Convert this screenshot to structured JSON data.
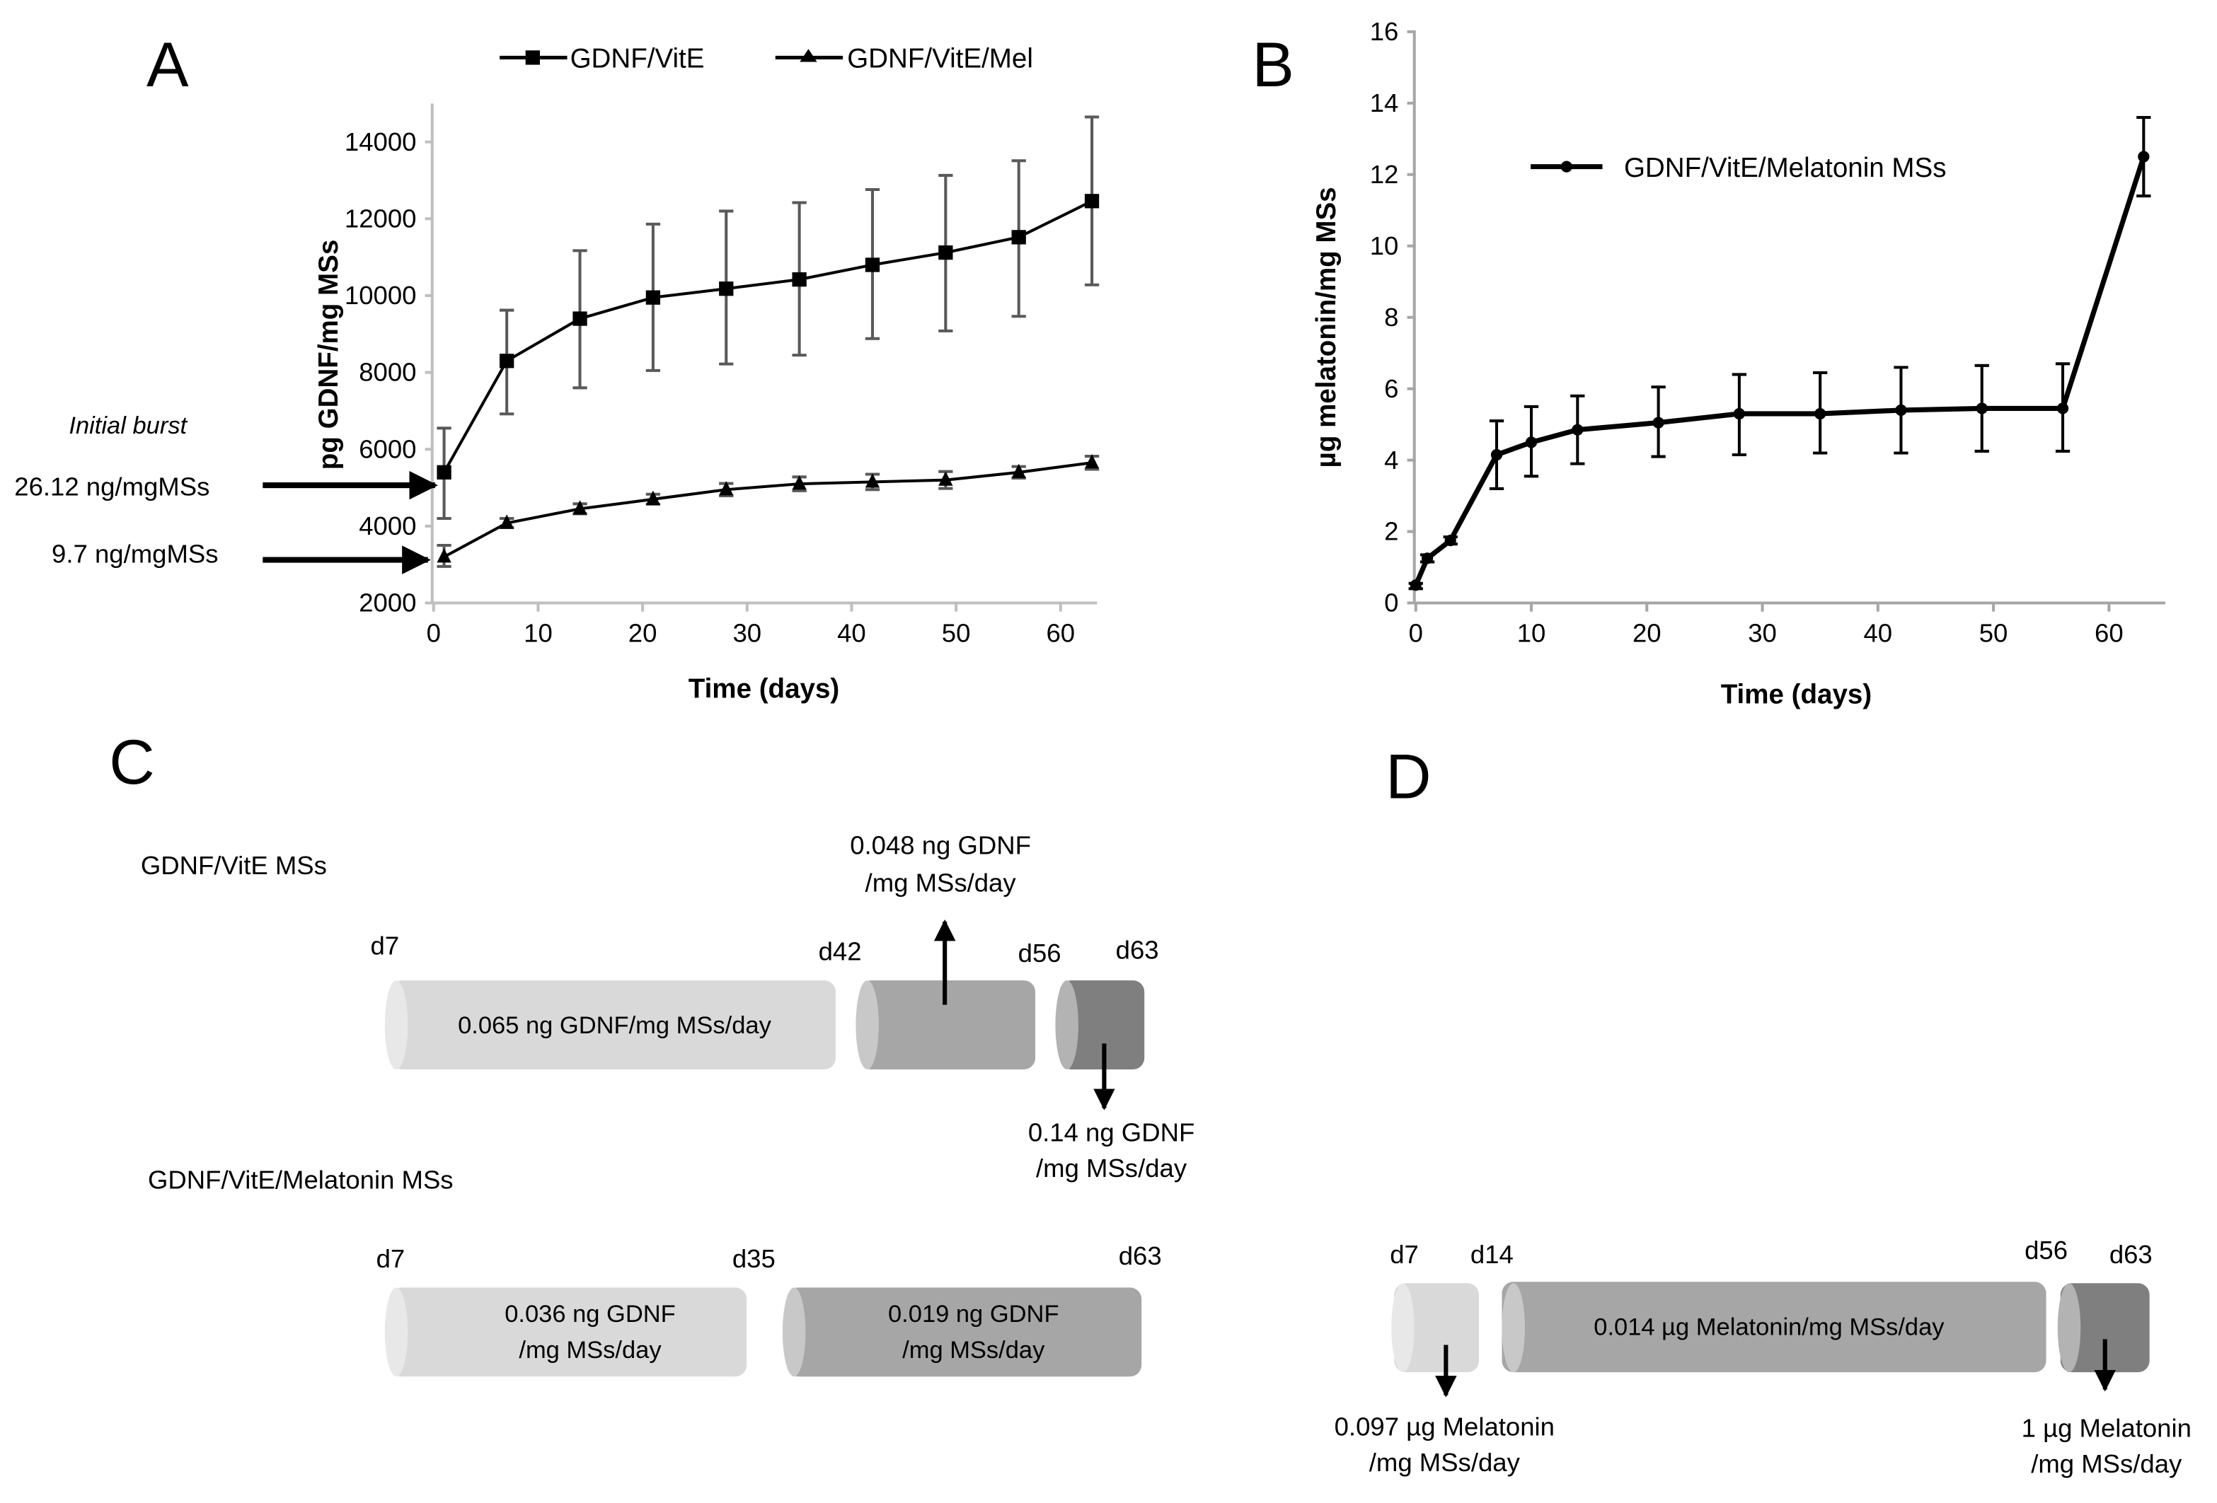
{
  "panels": {
    "a": "A",
    "b": "B",
    "c": "C",
    "d": "D"
  },
  "chart_data": [
    {
      "type": "line",
      "panel": "A",
      "xlabel": "Time (days)",
      "ylabel": "pg GDNF/mg MSs",
      "xlim": [
        0,
        65
      ],
      "ylim": [
        2000,
        15000
      ],
      "xticks": [
        0,
        10,
        20,
        30,
        40,
        50,
        60
      ],
      "yticks": [
        2000,
        4000,
        6000,
        8000,
        10000,
        12000,
        14000
      ],
      "legend_position": "top",
      "grid": false,
      "series": [
        {
          "name": "GDNF/VitE",
          "marker": "square",
          "x": [
            1,
            7,
            14,
            21,
            28,
            35,
            42,
            49,
            56,
            63
          ],
          "values": [
            5400,
            8300,
            9400,
            9950,
            10180,
            10420,
            10800,
            11120,
            11520,
            12460
          ],
          "err_upper": [
            6550,
            9620,
            11170,
            11860,
            12200,
            12420,
            12760,
            13130,
            13510,
            14650
          ],
          "err_lower": [
            4200,
            6920,
            7600,
            8050,
            8220,
            8450,
            8880,
            9080,
            9460,
            10280
          ]
        },
        {
          "name": "GDNF/VitE/Mel",
          "marker": "triangle",
          "x": [
            1,
            7,
            14,
            21,
            28,
            35,
            42,
            49,
            56,
            63
          ],
          "values": [
            3200,
            4080,
            4450,
            4700,
            4950,
            5100,
            5150,
            5200,
            5400,
            5650
          ],
          "err_upper": [
            3500,
            4200,
            4580,
            4830,
            5110,
            5280,
            5350,
            5420,
            5550,
            5820
          ],
          "err_lower": [
            2950,
            3960,
            4320,
            4570,
            4790,
            4920,
            4950,
            4980,
            5250,
            5480
          ]
        }
      ],
      "annotations": {
        "title": "Initial burst",
        "arrows": [
          "26.12 ng/mgMSs",
          "9.7 ng/mgMSs"
        ]
      }
    },
    {
      "type": "line",
      "panel": "B",
      "xlabel": "Time (days)",
      "ylabel": "µg melatonin/mg MSs",
      "xlim": [
        0,
        65
      ],
      "ylim": [
        0,
        16
      ],
      "xticks": [
        0,
        10,
        20,
        30,
        40,
        50,
        60
      ],
      "yticks": [
        0,
        2,
        4,
        6,
        8,
        10,
        12,
        14,
        16
      ],
      "legend_position": "top-center",
      "grid": false,
      "series": [
        {
          "name": "GDNF/VitE/Melatonin MSs",
          "marker": "circle",
          "x": [
            0,
            1,
            3,
            7,
            10,
            14,
            21,
            28,
            35,
            42,
            49,
            56,
            63
          ],
          "values": [
            0.5,
            1.25,
            1.75,
            4.15,
            4.5,
            4.85,
            5.05,
            5.3,
            5.3,
            5.4,
            5.45,
            5.45,
            12.5
          ],
          "err_upper": [
            0.55,
            1.35,
            1.85,
            5.1,
            5.5,
            5.8,
            6.05,
            6.4,
            6.45,
            6.6,
            6.65,
            6.7,
            13.6
          ],
          "err_lower": [
            0.4,
            1.15,
            1.65,
            3.2,
            3.55,
            3.9,
            4.1,
            4.15,
            4.2,
            4.2,
            4.25,
            4.25,
            11.4
          ]
        }
      ]
    }
  ],
  "diagram_c": {
    "row1": {
      "title": "GDNF/VitE MSs",
      "days": [
        "d7",
        "d42",
        "d56",
        "d63"
      ],
      "seg1": "0.065 ng GDNF/mg MSs/day",
      "up_label": [
        "0.048 ng GDNF",
        "/mg MSs/day"
      ],
      "down_label": [
        "0.14 ng GDNF",
        "/mg MSs/day"
      ]
    },
    "row2": {
      "title": "GDNF/VitE/Melatonin MSs",
      "days": [
        "d7",
        "d35",
        "d63"
      ],
      "seg1": [
        "0.036 ng GDNF",
        "/mg MSs/day"
      ],
      "seg2": [
        "0.019 ng GDNF",
        "/mg MSs/day"
      ]
    }
  },
  "diagram_d": {
    "days": [
      "d7",
      "d14",
      "d56",
      "d63"
    ],
    "seg_mid": "0.014 µg Melatonin/mg MSs/day",
    "left_label": [
      "0.097 µg Melatonin",
      "/mg MSs/day"
    ],
    "right_label": [
      "1 µg Melatonin",
      "/mg MSs/day"
    ]
  },
  "colors": {
    "light": "#d9d9d9",
    "light_cap": "#e8e8e8",
    "mid": "#a6a6a6",
    "mid_cap": "#c8c8c8",
    "dark": "#7f7f7f",
    "err_gray": "#595959",
    "axis": "#bfbfbf"
  }
}
